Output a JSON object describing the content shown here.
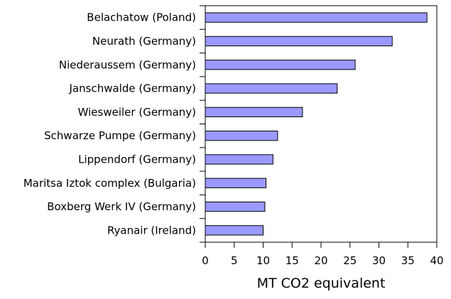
{
  "chart_data": {
    "type": "bar",
    "orientation": "horizontal",
    "categories": [
      "Belachatow (Poland)",
      "Neurath (Germany)",
      "Niederaussem (Germany)",
      "Janschwalde (Germany)",
      "Wiesweiler (Germany)",
      "Schwarze Pumpe (Germany)",
      "Lippendorf (Germany)",
      "Maritsa Iztok complex (Bulgaria)",
      "Boxberg Werk IV (Germany)",
      "Ryanair (Ireland)"
    ],
    "values": [
      38.3,
      32.3,
      25.9,
      22.8,
      16.8,
      12.5,
      11.7,
      10.5,
      10.3,
      10.0
    ],
    "xlabel": "MT CO2 equivalent",
    "xlim": [
      0,
      40
    ],
    "xticks": [
      0,
      5,
      10,
      15,
      20,
      25,
      30,
      35,
      40
    ],
    "grid": false,
    "legend": "none",
    "bar_color": "#9999ff"
  }
}
